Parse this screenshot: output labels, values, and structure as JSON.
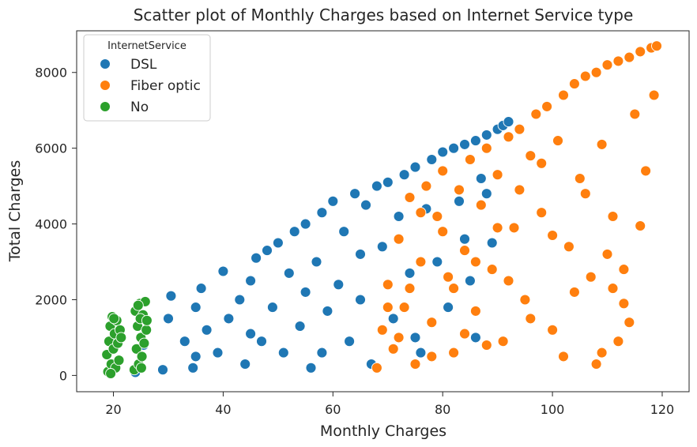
{
  "chart_data": {
    "type": "scatter",
    "title": "Scatter plot of Monthly Charges based on Internet Service type",
    "xlabel": "Monthly Charges",
    "ylabel": "Total Charges",
    "xlim": [
      13.3,
      124.9
    ],
    "ylim": [
      -430,
      9100
    ],
    "xticks": [
      20,
      40,
      60,
      80,
      100,
      120
    ],
    "yticks": [
      0,
      2000,
      4000,
      6000,
      8000
    ],
    "grid": false,
    "legend": {
      "title": "InternetService",
      "placement": "top-left",
      "entries": [
        "DSL",
        "Fiber optic",
        "No"
      ]
    },
    "series": [
      {
        "name": "DSL",
        "color": "#1f77b4",
        "points": [
          [
            24,
            80
          ],
          [
            25.5,
            800
          ],
          [
            29,
            150
          ],
          [
            30,
            1500
          ],
          [
            30.5,
            2100
          ],
          [
            33,
            900
          ],
          [
            34.5,
            200
          ],
          [
            35,
            1800
          ],
          [
            36,
            2300
          ],
          [
            37,
            1200
          ],
          [
            39,
            600
          ],
          [
            40,
            2750
          ],
          [
            41,
            1500
          ],
          [
            43,
            2000
          ],
          [
            44,
            300
          ],
          [
            45,
            2500
          ],
          [
            46,
            3100
          ],
          [
            47,
            900
          ],
          [
            48,
            3300
          ],
          [
            49,
            1800
          ],
          [
            50,
            3500
          ],
          [
            51,
            600
          ],
          [
            52,
            2700
          ],
          [
            53,
            3800
          ],
          [
            54,
            1300
          ],
          [
            55,
            4000
          ],
          [
            56,
            200
          ],
          [
            57,
            3000
          ],
          [
            58,
            4300
          ],
          [
            59,
            1700
          ],
          [
            60,
            4600
          ],
          [
            61,
            2400
          ],
          [
            62,
            3800
          ],
          [
            63,
            900
          ],
          [
            64,
            4800
          ],
          [
            65,
            2000
          ],
          [
            66,
            4500
          ],
          [
            67,
            300
          ],
          [
            68,
            5000
          ],
          [
            69,
            3400
          ],
          [
            70,
            5100
          ],
          [
            71,
            1500
          ],
          [
            72,
            4200
          ],
          [
            73,
            5300
          ],
          [
            74,
            2700
          ],
          [
            75,
            5500
          ],
          [
            76,
            600
          ],
          [
            77,
            4400
          ],
          [
            78,
            5700
          ],
          [
            79,
            3000
          ],
          [
            80,
            5900
          ],
          [
            81,
            1800
          ],
          [
            82,
            6000
          ],
          [
            83,
            4600
          ],
          [
            84,
            6100
          ],
          [
            85,
            2500
          ],
          [
            86,
            6200
          ],
          [
            87,
            5200
          ],
          [
            88,
            6350
          ],
          [
            89,
            3500
          ],
          [
            90,
            6500
          ],
          [
            91,
            6600
          ],
          [
            92,
            6700
          ],
          [
            86,
            1000
          ],
          [
            84,
            3600
          ],
          [
            88,
            4800
          ],
          [
            55,
            2200
          ],
          [
            45,
            1100
          ],
          [
            35,
            500
          ],
          [
            65,
            3200
          ],
          [
            75,
            1000
          ],
          [
            58,
            600
          ]
        ]
      },
      {
        "name": "Fiber optic",
        "color": "#ff7f0e",
        "points": [
          [
            68,
            200
          ],
          [
            69,
            1200
          ],
          [
            70,
            2400
          ],
          [
            71,
            700
          ],
          [
            72,
            3600
          ],
          [
            73,
            1800
          ],
          [
            74,
            4700
          ],
          [
            75,
            300
          ],
          [
            76,
            3000
          ],
          [
            77,
            5000
          ],
          [
            78,
            1400
          ],
          [
            79,
            4200
          ],
          [
            80,
            5400
          ],
          [
            81,
            2600
          ],
          [
            82,
            600
          ],
          [
            83,
            4900
          ],
          [
            84,
            3300
          ],
          [
            85,
            5700
          ],
          [
            86,
            1700
          ],
          [
            87,
            4500
          ],
          [
            88,
            6000
          ],
          [
            89,
            2800
          ],
          [
            90,
            5300
          ],
          [
            91,
            900
          ],
          [
            92,
            6300
          ],
          [
            93,
            3900
          ],
          [
            94,
            6500
          ],
          [
            95,
            2000
          ],
          [
            96,
            5800
          ],
          [
            97,
            6900
          ],
          [
            98,
            4300
          ],
          [
            99,
            7100
          ],
          [
            100,
            1200
          ],
          [
            101,
            6200
          ],
          [
            102,
            7400
          ],
          [
            103,
            3400
          ],
          [
            104,
            7700
          ],
          [
            105,
            5200
          ],
          [
            106,
            7900
          ],
          [
            107,
            2600
          ],
          [
            108,
            8000
          ],
          [
            109,
            6100
          ],
          [
            110,
            8200
          ],
          [
            111,
            4200
          ],
          [
            112,
            8300
          ],
          [
            113,
            2800
          ],
          [
            114,
            8400
          ],
          [
            115,
            6900
          ],
          [
            116,
            8550
          ],
          [
            117,
            5400
          ],
          [
            118,
            8650
          ],
          [
            119,
            8700
          ],
          [
            118.5,
            7400
          ],
          [
            116,
            3950
          ],
          [
            114,
            1400
          ],
          [
            112,
            900
          ],
          [
            110,
            3200
          ],
          [
            108,
            300
          ],
          [
            106,
            4800
          ],
          [
            104,
            2200
          ],
          [
            102,
            500
          ],
          [
            100,
            3700
          ],
          [
            98,
            5600
          ],
          [
            96,
            1500
          ],
          [
            94,
            4900
          ],
          [
            92,
            2500
          ],
          [
            90,
            3900
          ],
          [
            88,
            800
          ],
          [
            86,
            3000
          ],
          [
            84,
            1100
          ],
          [
            82,
            2300
          ],
          [
            80,
            3800
          ],
          [
            78,
            500
          ],
          [
            76,
            4300
          ],
          [
            74,
            2300
          ],
          [
            72,
            1000
          ],
          [
            70,
            1800
          ],
          [
            111,
            2300
          ],
          [
            113,
            1900
          ],
          [
            109,
            600
          ]
        ]
      },
      {
        "name": "No",
        "color": "#2ca02c",
        "points": [
          [
            18.8,
            550
          ],
          [
            19.0,
            100
          ],
          [
            19.2,
            900
          ],
          [
            19.4,
            1300
          ],
          [
            19.6,
            300
          ],
          [
            19.8,
            1550
          ],
          [
            20.0,
            700
          ],
          [
            20.2,
            1100
          ],
          [
            20.4,
            200
          ],
          [
            20.6,
            1450
          ],
          [
            20.8,
            850
          ],
          [
            21.0,
            400
          ],
          [
            21.2,
            1200
          ],
          [
            21.4,
            1000
          ],
          [
            20.1,
            1500
          ],
          [
            19.5,
            50
          ],
          [
            23.8,
            150
          ],
          [
            24.0,
            1700
          ],
          [
            24.2,
            700
          ],
          [
            24.4,
            1300
          ],
          [
            24.6,
            300
          ],
          [
            24.8,
            1900
          ],
          [
            25.0,
            1000
          ],
          [
            25.2,
            500
          ],
          [
            25.4,
            1600
          ],
          [
            25.6,
            850
          ],
          [
            25.8,
            1950
          ],
          [
            26.0,
            1200
          ],
          [
            24.5,
            1850
          ],
          [
            25.1,
            200
          ],
          [
            24.9,
            1500
          ],
          [
            26.1,
            1450
          ]
        ]
      }
    ]
  }
}
